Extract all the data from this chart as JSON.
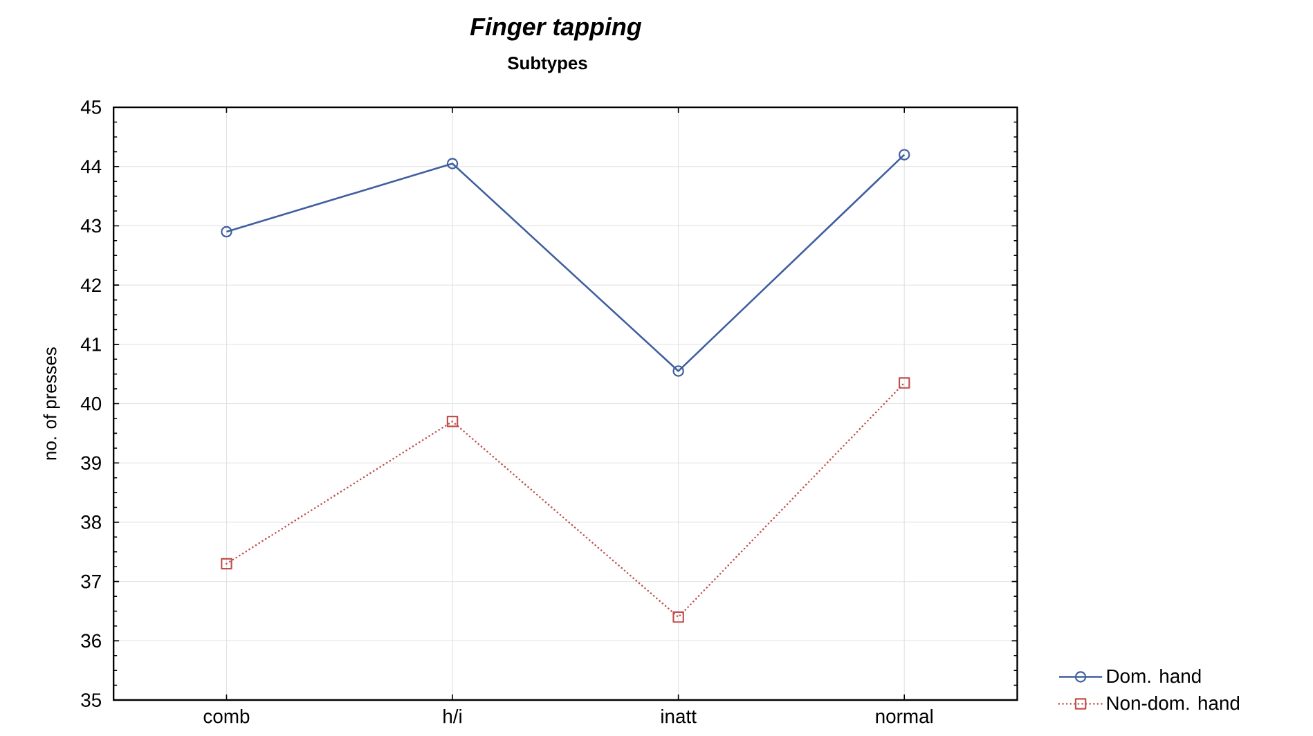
{
  "chart_data": {
    "type": "line",
    "title": "Finger tapping",
    "subtitle": "Subtypes",
    "ylabel": "no. of presses",
    "categories": [
      "comb",
      "h/i",
      "inatt",
      "normal"
    ],
    "series": [
      {
        "name": "Dom. hand",
        "color": "#3f5f9f",
        "values": [
          42.9,
          44.05,
          40.55,
          44.2
        ],
        "marker": "circle",
        "line_style": "solid"
      },
      {
        "name": "Non-dom. hand",
        "color": "#c0504d",
        "values": [
          37.3,
          39.7,
          36.4,
          40.35
        ],
        "marker": "square",
        "line_style": "dotted"
      }
    ],
    "ylim": [
      35,
      45
    ],
    "yticks": [
      35,
      36,
      37,
      38,
      39,
      40,
      41,
      42,
      43,
      44,
      45
    ],
    "grid": true,
    "legend": "bottom right"
  }
}
